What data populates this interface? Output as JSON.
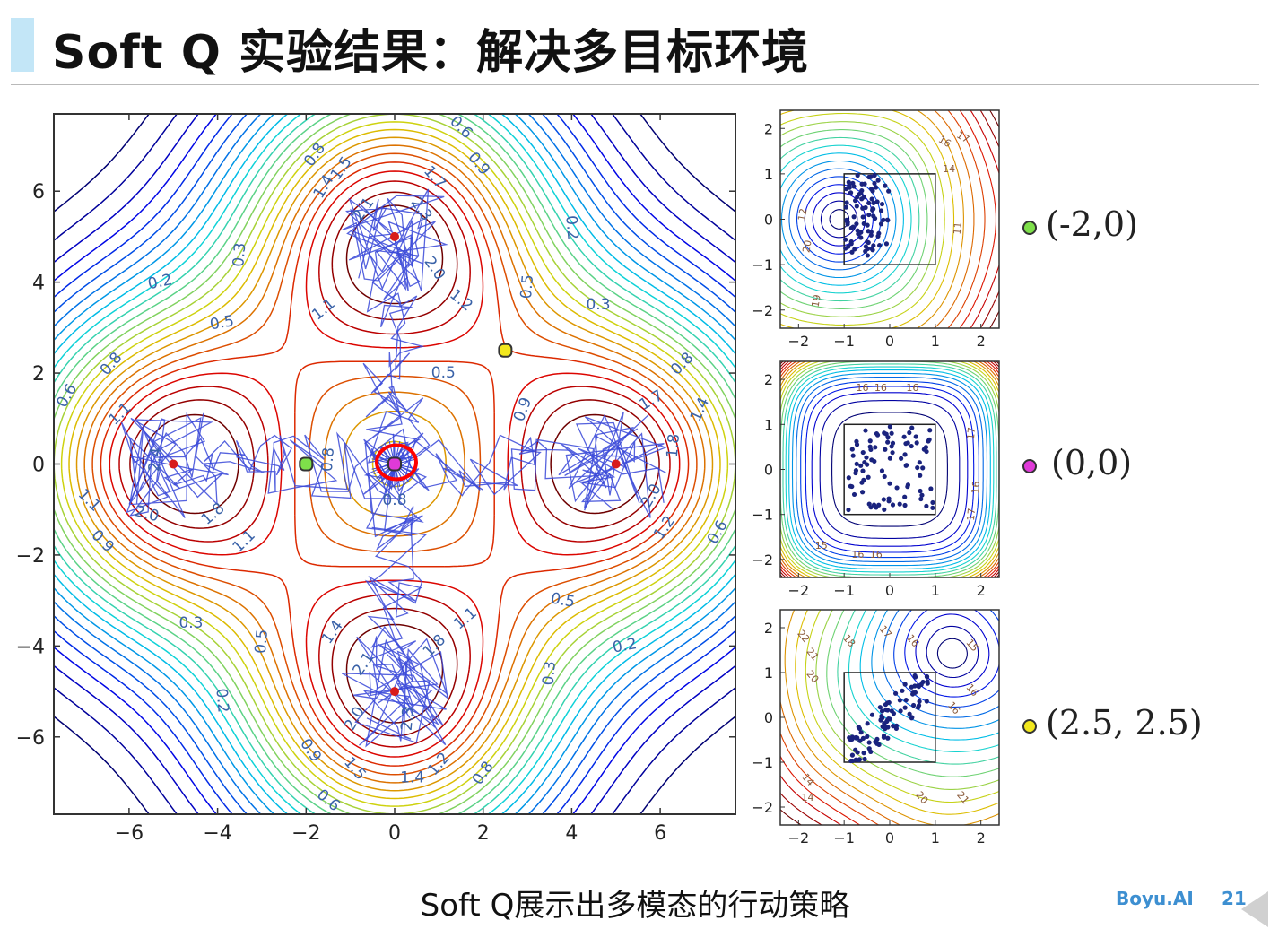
{
  "slide": {
    "title": "Soft Q 实验结果：解决多目标环境",
    "caption": "Soft Q展示出多模态的行动策略",
    "brand": "Boyu.AI",
    "page_number": "21"
  },
  "colors": {
    "title_accent": "#c3e6f7",
    "brand": "#3d8fd1",
    "trajectory": "#3848d8",
    "goal": "#d81b1b",
    "highlight": "#ff0000"
  },
  "legend": [
    {
      "label": "(-2,0)",
      "color": "#7ee04a",
      "icon": "green-dot-icon"
    },
    {
      "label": "(0,0)",
      "color": "#e03ad8",
      "icon": "magenta-dot-icon"
    },
    {
      "label": "(2.5, 2.5)",
      "color": "#f2e81e",
      "icon": "yellow-dot-icon"
    }
  ],
  "chart_data": [
    {
      "type": "contour",
      "xlim": [
        -7.7,
        7.7
      ],
      "ylim": [
        -7.7,
        7.7
      ],
      "xticks": [
        -6,
        -4,
        -2,
        0,
        2,
        4,
        6
      ],
      "yticks": [
        -6,
        -4,
        -2,
        0,
        2,
        4,
        6
      ],
      "xtick_labels": [
        "−6",
        "−4",
        "−2",
        "0",
        "2",
        "4",
        "6"
      ],
      "ytick_labels": [
        "−6",
        "−4",
        "−2",
        "0",
        "2",
        "4",
        "6"
      ],
      "goals": [
        [
          0,
          5
        ],
        [
          -5,
          0
        ],
        [
          5,
          0
        ],
        [
          0,
          -5
        ]
      ],
      "start": [
        0,
        0
      ],
      "query_points": [
        {
          "x": -2,
          "y": 0,
          "color": "#7ee04a"
        },
        {
          "x": 0,
          "y": 0,
          "color": "#e03ad8"
        },
        {
          "x": 2.5,
          "y": 2.5,
          "color": "#f2e81e"
        }
      ],
      "contour_labels": [
        {
          "text": "0.2",
          "x": -5.3,
          "y": 4.0,
          "rot": -12
        },
        {
          "text": "0.3",
          "x": -3.5,
          "y": 4.6,
          "rot": -85
        },
        {
          "text": "0.5",
          "x": -3.9,
          "y": 3.1,
          "rot": -10
        },
        {
          "text": "0.8",
          "x": -1.8,
          "y": 6.8,
          "rot": -55
        },
        {
          "text": "0.6",
          "x": 1.5,
          "y": 7.4,
          "rot": 45
        },
        {
          "text": "0.9",
          "x": 1.9,
          "y": 6.6,
          "rot": 50
        },
        {
          "text": "1.4",
          "x": -1.6,
          "y": 6.1,
          "rot": -60
        },
        {
          "text": "1.5",
          "x": -1.2,
          "y": 6.5,
          "rot": -55
        },
        {
          "text": "1.7",
          "x": 0.9,
          "y": 6.3,
          "rot": 50
        },
        {
          "text": "2.1",
          "x": -0.7,
          "y": 5.6,
          "rot": -55
        },
        {
          "text": "2.3",
          "x": 0.6,
          "y": 5.6,
          "rot": 55
        },
        {
          "text": "2.0",
          "x": 0.9,
          "y": 4.3,
          "rot": 55
        },
        {
          "text": "1.2",
          "x": 1.5,
          "y": 3.6,
          "rot": 40
        },
        {
          "text": "1.1",
          "x": -1.6,
          "y": 3.4,
          "rot": -40
        },
        {
          "text": "0.2",
          "x": 4.0,
          "y": 5.2,
          "rot": 85
        },
        {
          "text": "0.5",
          "x": 3.0,
          "y": 3.9,
          "rot": -85
        },
        {
          "text": "0.3",
          "x": 4.6,
          "y": 3.5,
          "rot": 0
        },
        {
          "text": "0.5",
          "x": 1.1,
          "y": 2.0,
          "rot": 0
        },
        {
          "text": "0.8",
          "x": 6.5,
          "y": 2.2,
          "rot": -45
        },
        {
          "text": "0.9",
          "x": 2.9,
          "y": 1.2,
          "rot": -70
        },
        {
          "text": "1.4",
          "x": 6.9,
          "y": 1.2,
          "rot": -65
        },
        {
          "text": "1.7",
          "x": 5.8,
          "y": 1.4,
          "rot": -30
        },
        {
          "text": "1.8",
          "x": 6.3,
          "y": 0.4,
          "rot": -85
        },
        {
          "text": "2.0",
          "x": 5.8,
          "y": -0.7,
          "rot": -60
        },
        {
          "text": "1.2",
          "x": 6.1,
          "y": -1.4,
          "rot": -55
        },
        {
          "text": "0.6",
          "x": 7.3,
          "y": -1.5,
          "rot": -60
        },
        {
          "text": "0.8",
          "x": -6.4,
          "y": 2.2,
          "rot": -50
        },
        {
          "text": "0.6",
          "x": -7.4,
          "y": 1.5,
          "rot": -60
        },
        {
          "text": "1.1",
          "x": -6.2,
          "y": 1.1,
          "rot": -45
        },
        {
          "text": "2.4",
          "x": -5.4,
          "y": 0.1,
          "rot": -85
        },
        {
          "text": "2.0",
          "x": -5.6,
          "y": -1.1,
          "rot": 15
        },
        {
          "text": "1.1",
          "x": -6.9,
          "y": -0.8,
          "rot": 45
        },
        {
          "text": "1.8",
          "x": -4.1,
          "y": -1.1,
          "rot": -40
        },
        {
          "text": "1.1",
          "x": -3.4,
          "y": -1.7,
          "rot": -45
        },
        {
          "text": "0.9",
          "x": -6.6,
          "y": -1.7,
          "rot": 45
        },
        {
          "text": "0.8",
          "x": -1.5,
          "y": 0.1,
          "rot": -85
        },
        {
          "text": "0.8",
          "x": 0,
          "y": -0.8,
          "rot": 0
        },
        {
          "text": "0.5",
          "x": 3.8,
          "y": -3.0,
          "rot": 10
        },
        {
          "text": "0.3",
          "x": -4.6,
          "y": -3.5,
          "rot": 0
        },
        {
          "text": "0.5",
          "x": -3.0,
          "y": -3.9,
          "rot": -85
        },
        {
          "text": "1.1",
          "x": 1.6,
          "y": -3.4,
          "rot": -40
        },
        {
          "text": "1.4",
          "x": -1.4,
          "y": -3.7,
          "rot": -55
        },
        {
          "text": "1.8",
          "x": 0.9,
          "y": -4.0,
          "rot": -45
        },
        {
          "text": "2.1",
          "x": -0.7,
          "y": -4.4,
          "rot": -55
        },
        {
          "text": "2.0",
          "x": -0.9,
          "y": -5.6,
          "rot": -60
        },
        {
          "text": "2.3",
          "x": 0.3,
          "y": -5.6,
          "rot": -85
        },
        {
          "text": "0.2",
          "x": 5.2,
          "y": -4.0,
          "rot": -10
        },
        {
          "text": "0.3",
          "x": 3.5,
          "y": -4.6,
          "rot": -85
        },
        {
          "text": "0.2",
          "x": -3.9,
          "y": -5.2,
          "rot": 85
        },
        {
          "text": "0.9",
          "x": -1.9,
          "y": -6.3,
          "rot": 55
        },
        {
          "text": "1.5",
          "x": -0.9,
          "y": -6.7,
          "rot": 50
        },
        {
          "text": "1.4",
          "x": 0.4,
          "y": -6.9,
          "rot": 0
        },
        {
          "text": "1.2",
          "x": 1.0,
          "y": -6.6,
          "rot": -50
        },
        {
          "text": "0.8",
          "x": 2.0,
          "y": -6.8,
          "rot": -55
        },
        {
          "text": "0.6",
          "x": -1.5,
          "y": -7.4,
          "rot": 40
        }
      ]
    },
    {
      "type": "contour",
      "xlim": [
        -2.4,
        2.4
      ],
      "ylim": [
        -2.4,
        2.4
      ],
      "xticks": [
        -2,
        -1,
        0,
        1,
        2
      ],
      "yticks": [
        -2,
        -1,
        0,
        1,
        2
      ],
      "xtick_labels": [
        "−2",
        "−1",
        "0",
        "1",
        "2"
      ],
      "ytick_labels": [
        "−2",
        "−1",
        "0",
        "1",
        "2"
      ],
      "query": [
        -2,
        0
      ],
      "box": [
        -1,
        1
      ],
      "samples_center": [
        -0.5,
        0.1
      ],
      "contour_labels": [
        {
          "text": "12",
          "x": -1.9,
          "y": 0.1,
          "rot": -80
        },
        {
          "text": "20",
          "x": -1.8,
          "y": -0.6,
          "rot": -80
        },
        {
          "text": "19",
          "x": -1.6,
          "y": -1.8,
          "rot": -80
        },
        {
          "text": "16",
          "x": 1.2,
          "y": 1.7,
          "rot": 30
        },
        {
          "text": "17",
          "x": 1.6,
          "y": 1.8,
          "rot": 30
        },
        {
          "text": "14",
          "x": 1.3,
          "y": 1.1,
          "rot": 0
        },
        {
          "text": "11",
          "x": 1.5,
          "y": -0.2,
          "rot": -85
        }
      ]
    },
    {
      "type": "contour",
      "xlim": [
        -2.4,
        2.4
      ],
      "ylim": [
        -2.4,
        2.4
      ],
      "xticks": [
        -2,
        -1,
        0,
        1,
        2
      ],
      "yticks": [
        -2,
        -1,
        0,
        1,
        2
      ],
      "xtick_labels": [
        "−2",
        "−1",
        "0",
        "1",
        "2"
      ],
      "ytick_labels": [
        "−2",
        "−1",
        "0",
        "1",
        "2"
      ],
      "query": [
        0,
        0
      ],
      "box": [
        -1,
        1
      ],
      "samples_center": [
        0,
        0
      ],
      "contour_labels": [
        {
          "text": "16",
          "x": -0.6,
          "y": 1.8,
          "rot": 0
        },
        {
          "text": "16",
          "x": -0.2,
          "y": 1.8,
          "rot": 0
        },
        {
          "text": "16",
          "x": 0.5,
          "y": 1.8,
          "rot": 0
        },
        {
          "text": "15",
          "x": -1.5,
          "y": -1.7,
          "rot": 0
        },
        {
          "text": "16",
          "x": -0.7,
          "y": -1.9,
          "rot": 0
        },
        {
          "text": "16",
          "x": -0.3,
          "y": -1.9,
          "rot": 0
        },
        {
          "text": "16",
          "x": 1.9,
          "y": -0.4,
          "rot": -85
        },
        {
          "text": "17",
          "x": 1.8,
          "y": -1.0,
          "rot": -85
        },
        {
          "text": "17",
          "x": 1.8,
          "y": 0.8,
          "rot": -85
        }
      ]
    },
    {
      "type": "contour",
      "xlim": [
        -2.4,
        2.4
      ],
      "ylim": [
        -2.4,
        2.4
      ],
      "xticks": [
        -2,
        -1,
        0,
        1,
        2
      ],
      "yticks": [
        -2,
        -1,
        0,
        1,
        2
      ],
      "xtick_labels": [
        "−2",
        "−1",
        "0",
        "1",
        "2"
      ],
      "ytick_labels": [
        "−2",
        "−1",
        "0",
        "1",
        "2"
      ],
      "query": [
        2.5,
        2.5
      ],
      "box": [
        -1,
        1
      ],
      "samples_center": [
        0.2,
        0.1
      ],
      "contour_labels": [
        {
          "text": "22",
          "x": -1.9,
          "y": 1.8,
          "rot": 50
        },
        {
          "text": "21",
          "x": -1.7,
          "y": 1.4,
          "rot": 50
        },
        {
          "text": "20",
          "x": -1.7,
          "y": 0.9,
          "rot": 50
        },
        {
          "text": "18",
          "x": -0.9,
          "y": 1.7,
          "rot": 50
        },
        {
          "text": "17",
          "x": -0.1,
          "y": 1.9,
          "rot": 50
        },
        {
          "text": "16",
          "x": 0.5,
          "y": 1.7,
          "rot": 50
        },
        {
          "text": "15",
          "x": 1.8,
          "y": 1.6,
          "rot": 50
        },
        {
          "text": "16",
          "x": 1.8,
          "y": 0.6,
          "rot": 50
        },
        {
          "text": "16",
          "x": 1.4,
          "y": 0.2,
          "rot": 50
        },
        {
          "text": "14",
          "x": -1.8,
          "y": -1.4,
          "rot": 50
        },
        {
          "text": "14",
          "x": -1.8,
          "y": -1.8,
          "rot": 0
        },
        {
          "text": "20",
          "x": 0.7,
          "y": -1.8,
          "rot": 50
        },
        {
          "text": "21",
          "x": 1.6,
          "y": -1.8,
          "rot": 50
        }
      ]
    }
  ]
}
